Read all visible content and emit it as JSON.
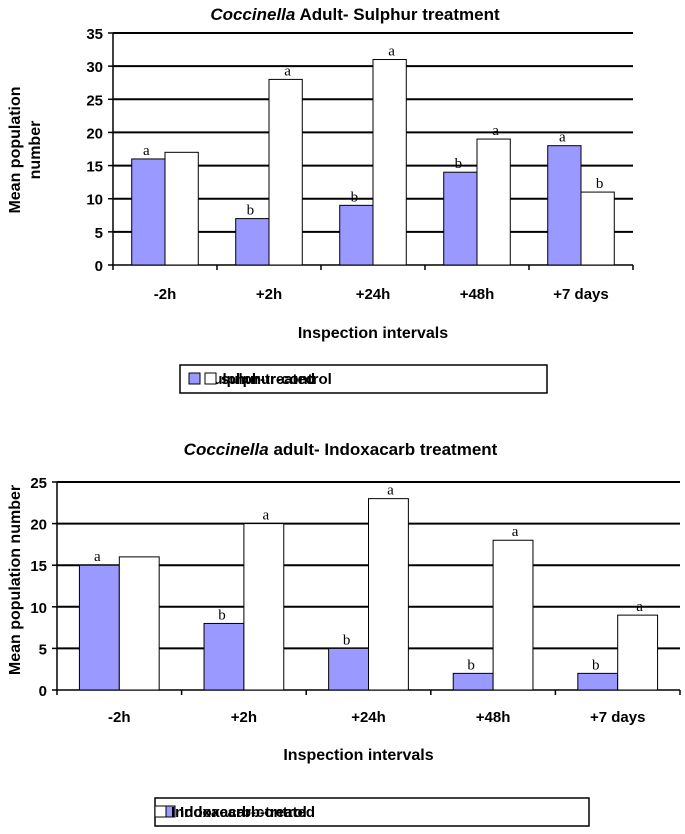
{
  "colors": {
    "treated": "#9999ff",
    "control": "#ffffff",
    "stroke": "#000000"
  },
  "chart_data": [
    {
      "type": "bar",
      "title_italic": "Coccinella",
      "title_rest": " Adult- Sulphur treatment",
      "xlabel": "Inspection intervals",
      "ylabel_lines": [
        "Mean population",
        "number"
      ],
      "categories": [
        "-2h",
        "+2h",
        "+24h",
        "+48h",
        "+7 days"
      ],
      "ylim": [
        0,
        35
      ],
      "yticks": [
        0,
        5,
        10,
        15,
        20,
        25,
        30,
        35
      ],
      "grid": true,
      "legend": "bottom",
      "series": [
        {
          "name": "sulphur-treated",
          "values": [
            16,
            7,
            9,
            14,
            18
          ],
          "labels": [
            "a",
            "b",
            "b",
            "b",
            "a"
          ]
        },
        {
          "name": "sulphur-control",
          "values": [
            17,
            28,
            31,
            19,
            11
          ],
          "labels": [
            "",
            "a",
            "a",
            "a",
            "b"
          ]
        }
      ]
    },
    {
      "type": "bar",
      "title_italic": "Coccinella",
      "title_rest": " adult- Indoxacarb treatment",
      "xlabel": "Inspection intervals",
      "ylabel_lines": [
        "Mean population number"
      ],
      "categories": [
        "-2h",
        "+2h",
        "+24h",
        "+48h",
        "+7 days"
      ],
      "ylim": [
        0,
        25
      ],
      "yticks": [
        0,
        5,
        10,
        15,
        20,
        25
      ],
      "grid": true,
      "legend": "bottom",
      "series": [
        {
          "name": "Indoxacarb-treated",
          "values": [
            15,
            8,
            5,
            2,
            2
          ],
          "labels": [
            "a",
            "b",
            "b",
            "b",
            "b"
          ]
        },
        {
          "name": "Indoxacarb-control",
          "values": [
            16,
            20,
            23,
            18,
            9
          ],
          "labels": [
            "",
            "a",
            "a",
            "a",
            "a"
          ]
        }
      ]
    }
  ]
}
